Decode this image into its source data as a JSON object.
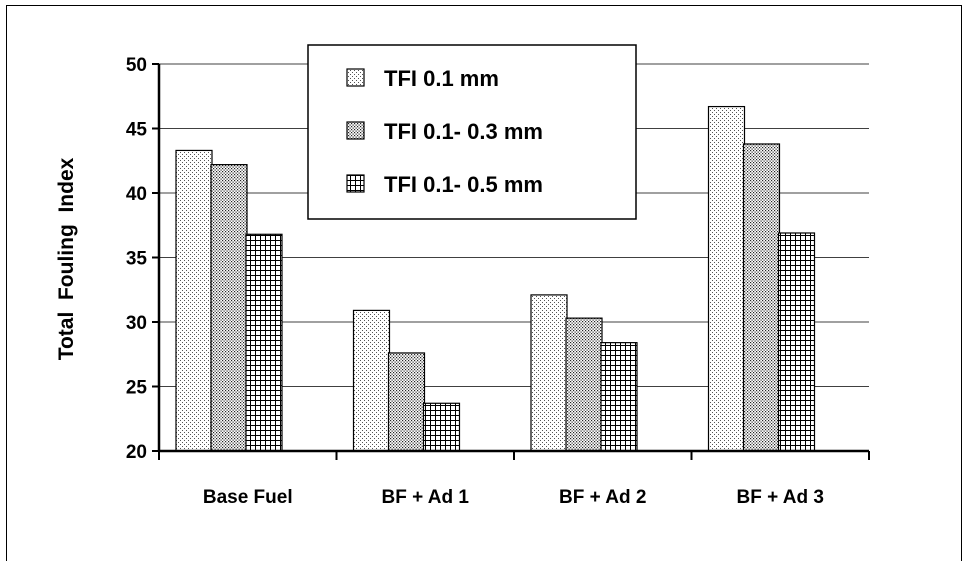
{
  "chart_data": {
    "type": "bar",
    "title": "",
    "xlabel": "",
    "ylabel": "Total  Fouling  Index",
    "ylim": [
      20,
      50
    ],
    "yticks": [
      20,
      25,
      30,
      35,
      40,
      45,
      50
    ],
    "grid": true,
    "legend_position": "top-center",
    "categories": [
      "Base Fuel",
      "BF + Ad 1",
      "BF + Ad 2",
      "BF + Ad 3"
    ],
    "series": [
      {
        "name": "TFI 0.1 mm",
        "pattern": "fine-dots",
        "values": [
          43.3,
          30.9,
          32.1,
          46.7
        ]
      },
      {
        "name": "TFI 0.1- 0.3 mm",
        "pattern": "dense-dots",
        "values": [
          42.2,
          27.6,
          30.3,
          43.8
        ]
      },
      {
        "name": "TFI 0.1- 0.5 mm",
        "pattern": "grid-hatch",
        "values": [
          36.8,
          23.7,
          28.4,
          36.9
        ]
      }
    ]
  }
}
